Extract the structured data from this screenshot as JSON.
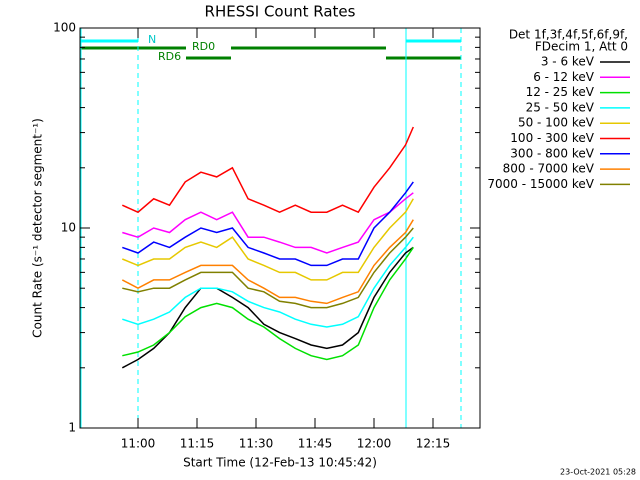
{
  "chart_data": {
    "type": "line",
    "title": "RHESSI Count Rates",
    "xlabel": "Start Time (12-Feb-13 10:45:42)",
    "ylabel": "Count Rate (s⁻¹ detector segment⁻¹)",
    "legend_title": [
      "Det 1f,3f,4f,5f,6f,9f,",
      "FDecim 1, Att 0"
    ],
    "annotations": [
      "N",
      "RD0",
      "RD6"
    ],
    "footer": "23-Oct-2021 05:28",
    "log_y": true,
    "ylim": [
      1,
      100
    ],
    "yticks": [
      {
        "value": 1,
        "label": "1"
      },
      {
        "value": 10,
        "label": "10"
      },
      {
        "value": 100,
        "label": "100"
      }
    ],
    "yminorticks": [
      2,
      3,
      4,
      5,
      6,
      7,
      8,
      9,
      20,
      30,
      40,
      50,
      60,
      70,
      80,
      90
    ],
    "xlim": [
      45.25,
      146.95
    ],
    "xticks": [
      {
        "value": 60,
        "label": "11:00"
      },
      {
        "value": 75,
        "label": "11:15"
      },
      {
        "value": 90,
        "label": "11:30"
      },
      {
        "value": 105,
        "label": "11:45"
      },
      {
        "value": 120,
        "label": "12:00"
      },
      {
        "value": 135,
        "label": "12:15"
      }
    ],
    "x": [
      56,
      60,
      64,
      68,
      72,
      76,
      80,
      84,
      88,
      92,
      96,
      100,
      104,
      108,
      112,
      116,
      120,
      124,
      128,
      130
    ],
    "series": [
      {
        "name": "3 - 6 keV",
        "color": "#000000",
        "values": [
          2,
          2.2,
          2.5,
          3,
          4,
          5,
          5,
          4.5,
          4,
          3.3,
          3,
          2.8,
          2.6,
          2.5,
          2.6,
          3,
          4.5,
          6,
          7.5,
          8
        ]
      },
      {
        "name": "6 - 12 keV",
        "color": "#ff00ff",
        "values": [
          9.5,
          9,
          10,
          9.5,
          11,
          12,
          11,
          12,
          9,
          9,
          8.5,
          8,
          8,
          7.5,
          8,
          8.5,
          11,
          12,
          14,
          15
        ]
      },
      {
        "name": "12 - 25 keV",
        "color": "#00e000",
        "values": [
          2.3,
          2.4,
          2.6,
          3,
          3.6,
          4,
          4.2,
          4,
          3.5,
          3.2,
          2.8,
          2.5,
          2.3,
          2.2,
          2.3,
          2.6,
          4,
          5.5,
          7,
          8
        ]
      },
      {
        "name": "25 - 50 keV",
        "color": "#00ffff",
        "values": [
          3.5,
          3.3,
          3.5,
          3.8,
          4.5,
          5,
          5,
          4.8,
          4.3,
          4,
          3.8,
          3.5,
          3.3,
          3.2,
          3.3,
          3.6,
          5,
          6.5,
          8,
          9
        ]
      },
      {
        "name": "50 - 100 keV",
        "color": "#e6c800",
        "values": [
          7,
          6.5,
          7,
          7,
          8,
          8.5,
          8,
          9,
          7,
          6.5,
          6,
          6,
          5.5,
          5.5,
          6,
          6,
          8,
          10,
          12,
          14
        ]
      },
      {
        "name": "100 - 300 keV",
        "color": "#ff0000",
        "values": [
          13,
          12,
          14,
          13,
          17,
          19,
          18,
          20,
          14,
          13,
          12,
          13,
          12,
          12,
          13,
          12,
          16,
          20,
          26,
          32
        ]
      },
      {
        "name": "300 - 800 keV",
        "color": "#0000ff",
        "values": [
          8,
          7.5,
          8.5,
          8,
          9,
          10,
          9.5,
          10,
          8,
          7.5,
          7,
          7,
          6.5,
          6.5,
          7,
          7,
          10,
          12,
          15,
          17
        ]
      },
      {
        "name": "800 - 7000 keV",
        "color": "#ff8000",
        "values": [
          5.5,
          5,
          5.5,
          5.5,
          6,
          6.5,
          6.5,
          6.5,
          5.5,
          5,
          4.5,
          4.5,
          4.3,
          4.2,
          4.5,
          4.8,
          6.5,
          8,
          9.5,
          11
        ]
      },
      {
        "name": "7000 - 15000 keV",
        "color": "#808000",
        "values": [
          5,
          4.8,
          5,
          5,
          5.5,
          6,
          6,
          6,
          5,
          4.8,
          4.3,
          4.2,
          4,
          4,
          4.2,
          4.5,
          6,
          7.5,
          9,
          10
        ]
      }
    ]
  }
}
